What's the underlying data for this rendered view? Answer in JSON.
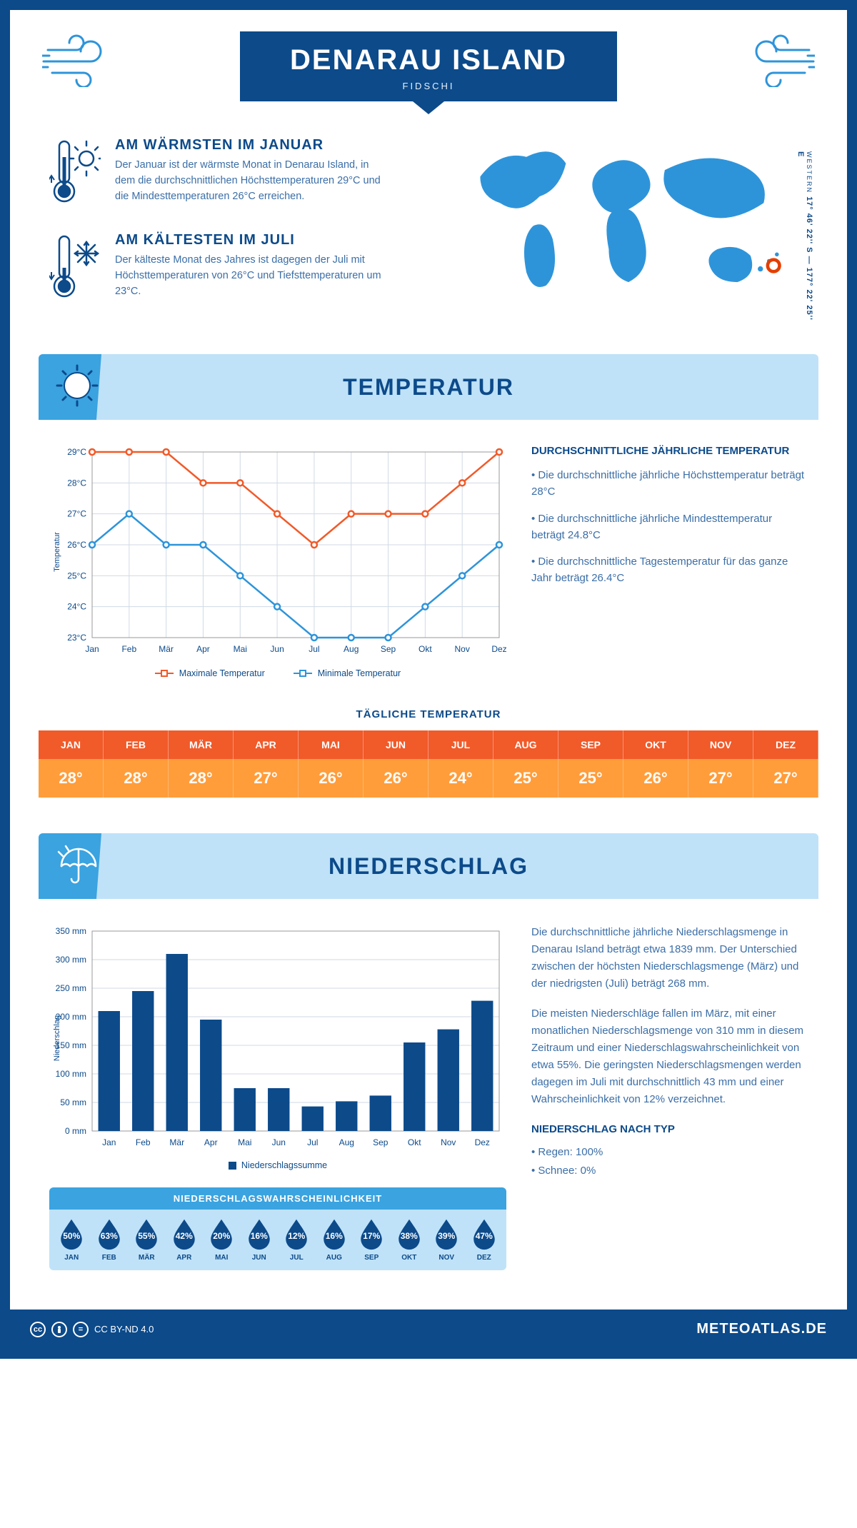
{
  "header": {
    "title": "DENARAU ISLAND",
    "subtitle": "FIDSCHI",
    "coords": "17° 46' 22'' S — 177° 22' 25'' E",
    "timezone": "WESTERN"
  },
  "intro": {
    "warm": {
      "title": "AM WÄRMSTEN IM JANUAR",
      "text": "Der Januar ist der wärmste Monat in Denarau Island, in dem die durchschnittlichen Höchsttemperaturen 29°C und die Mindesttemperaturen 26°C erreichen."
    },
    "cold": {
      "title": "AM KÄLTESTEN IM JULI",
      "text": "Der kälteste Monat des Jahres ist dagegen der Juli mit Höchsttemperaturen von 26°C und Tiefsttemperaturen um 23°C."
    }
  },
  "sections": {
    "temperature": "TEMPERATUR",
    "precipitation": "NIEDERSCHLAG"
  },
  "months": [
    "Jan",
    "Feb",
    "Mär",
    "Apr",
    "Mai",
    "Jun",
    "Jul",
    "Aug",
    "Sep",
    "Okt",
    "Nov",
    "Dez"
  ],
  "months_upper": [
    "JAN",
    "FEB",
    "MÄR",
    "APR",
    "MAI",
    "JUN",
    "JUL",
    "AUG",
    "SEP",
    "OKT",
    "NOV",
    "DEZ"
  ],
  "temp_chart": {
    "type": "line",
    "y_label": "Temperatur",
    "y_min": 23,
    "y_max": 29,
    "y_step": 1,
    "max_series": [
      29,
      29,
      29,
      28,
      28,
      27,
      26,
      27,
      27,
      27,
      28,
      29
    ],
    "min_series": [
      26,
      27,
      26,
      26,
      25,
      24,
      23,
      23,
      23,
      24,
      25,
      26
    ],
    "max_color": "#f15a29",
    "min_color": "#2e94da",
    "grid_color": "#d0dae6",
    "legend_max": "Maximale Temperatur",
    "legend_min": "Minimale Temperatur"
  },
  "temp_text": {
    "heading": "DURCHSCHNITTLICHE JÄHRLICHE TEMPERATUR",
    "p1": "• Die durchschnittliche jährliche Höchsttemperatur beträgt 28°C",
    "p2": "• Die durchschnittliche jährliche Mindesttemperatur beträgt 24.8°C",
    "p3": "• Die durchschnittliche Tagestemperatur für das ganze Jahr beträgt 26.4°C"
  },
  "daily_temp": {
    "title": "TÄGLICHE TEMPERATUR",
    "values": [
      "28°",
      "28°",
      "28°",
      "27°",
      "26°",
      "26°",
      "24°",
      "25°",
      "25°",
      "26°",
      "27°",
      "27°"
    ],
    "header_bg": "#f15a29",
    "value_bg": "#ff9d3b"
  },
  "precip_chart": {
    "type": "bar",
    "y_label": "Niederschlag",
    "y_min": 0,
    "y_max": 350,
    "y_step": 50,
    "values": [
      210,
      245,
      310,
      195,
      75,
      75,
      43,
      52,
      62,
      155,
      178,
      228
    ],
    "bar_color": "#0c4a8a",
    "grid_color": "#d0dae6",
    "legend": "Niederschlagssumme"
  },
  "precip_text": {
    "p1": "Die durchschnittliche jährliche Niederschlagsmenge in Denarau Island beträgt etwa 1839 mm. Der Unterschied zwischen der höchsten Niederschlagsmenge (März) und der niedrigsten (Juli) beträgt 268 mm.",
    "p2": "Die meisten Niederschläge fallen im März, mit einer monatlichen Niederschlagsmenge von 310 mm in diesem Zeitraum und einer Niederschlagswahrscheinlichkeit von etwa 55%. Die geringsten Niederschlagsmengen werden dagegen im Juli mit durchschnittlich 43 mm und einer Wahrscheinlichkeit von 12% verzeichnet.",
    "type_heading": "NIEDERSCHLAG NACH TYP",
    "rain": "• Regen: 100%",
    "snow": "• Schnee: 0%"
  },
  "precip_prob": {
    "title": "NIEDERSCHLAGSWAHRSCHEINLICHKEIT",
    "values": [
      "50%",
      "63%",
      "55%",
      "42%",
      "20%",
      "16%",
      "12%",
      "16%",
      "17%",
      "38%",
      "39%",
      "47%"
    ],
    "drop_fill": "#0c4a8a",
    "box_bg": "#bfe2f8",
    "title_bg": "#3aa3e0"
  },
  "footer": {
    "license": "CC BY-ND 4.0",
    "brand": "METEOATLAS.DE"
  },
  "colors": {
    "primary": "#0c4a8a",
    "accent": "#3aa3e0",
    "pale": "#bfe2f8",
    "orange": "#f15a29",
    "orange_light": "#ff9d3b"
  }
}
